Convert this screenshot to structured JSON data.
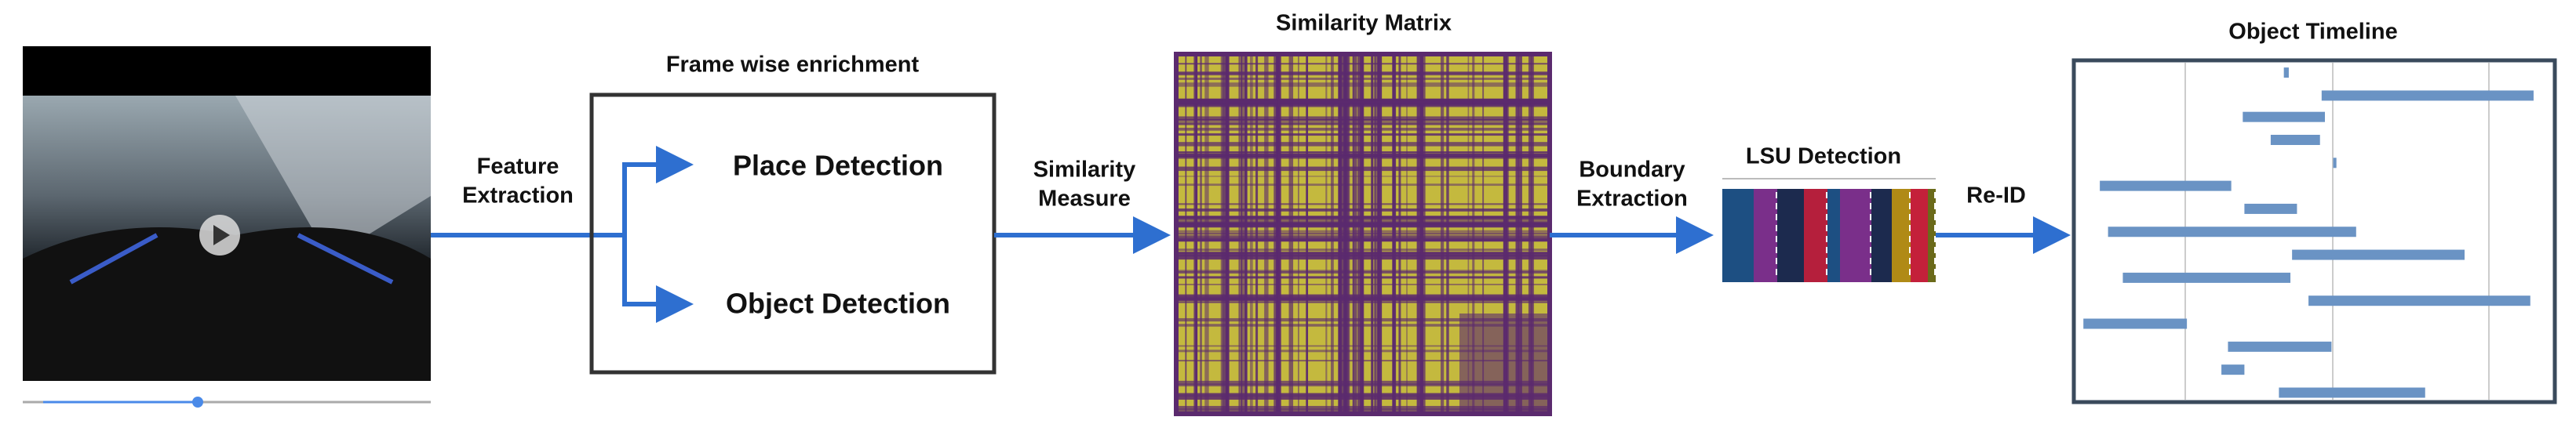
{
  "stages": {
    "feature_extraction": {
      "label_line1": "Feature",
      "label_line2": "Extraction"
    },
    "enrichment": {
      "title": "Frame wise enrichment",
      "place": "Place Detection",
      "object": "Object Detection"
    },
    "similarity_measure": {
      "label_line1": "Similarity",
      "label_line2": "Measure"
    },
    "similarity_matrix": {
      "title": "Similarity Matrix"
    },
    "boundary_extraction": {
      "label_line1": "Boundary",
      "label_line2": "Extraction"
    },
    "lsu_detection": {
      "title": "LSU Detection"
    },
    "reid": {
      "label": "Re-ID"
    },
    "object_timeline": {
      "title": "Object Timeline"
    }
  }
}
